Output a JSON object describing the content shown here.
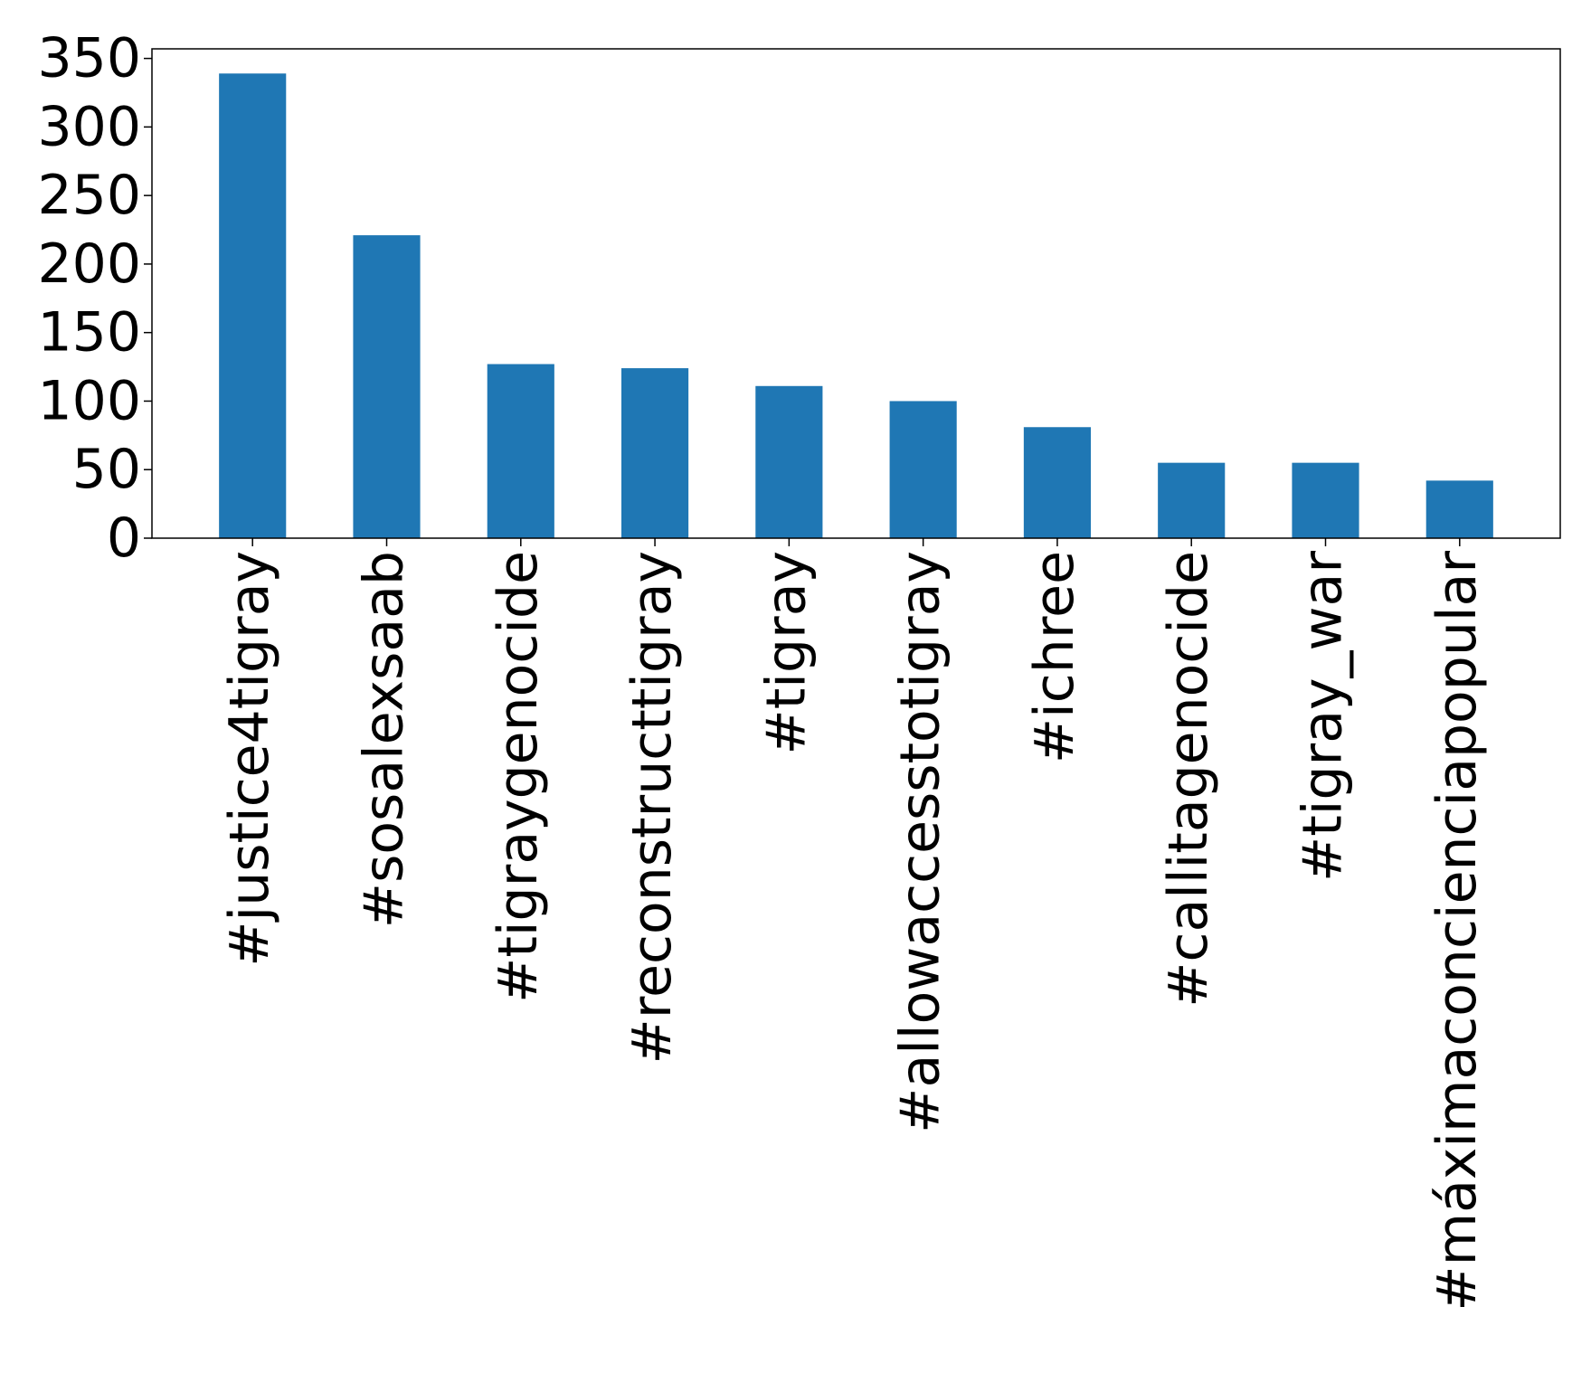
{
  "chart_data": {
    "type": "bar",
    "title": "",
    "xlabel": "",
    "ylabel": "",
    "categories": [
      "#justice4tigray",
      "#sosalexsaab",
      "#tigraygenocide",
      "#reconstructtigray",
      "#tigray",
      "#allowaccesstotigray",
      "#ichree",
      "#callitagenocide",
      "#tigray_war",
      "#máximaconcienciapopular"
    ],
    "values": [
      339,
      221,
      127,
      124,
      111,
      100,
      81,
      55,
      55,
      42
    ],
    "ylim": [
      0,
      357
    ],
    "yticks": [
      "0",
      "50",
      "100",
      "150",
      "200",
      "250",
      "300",
      "350"
    ],
    "ytick_values": [
      0,
      50,
      100,
      150,
      200,
      250,
      300,
      350
    ],
    "bar_color": "#1f77b4",
    "grid": false,
    "legend": false
  }
}
